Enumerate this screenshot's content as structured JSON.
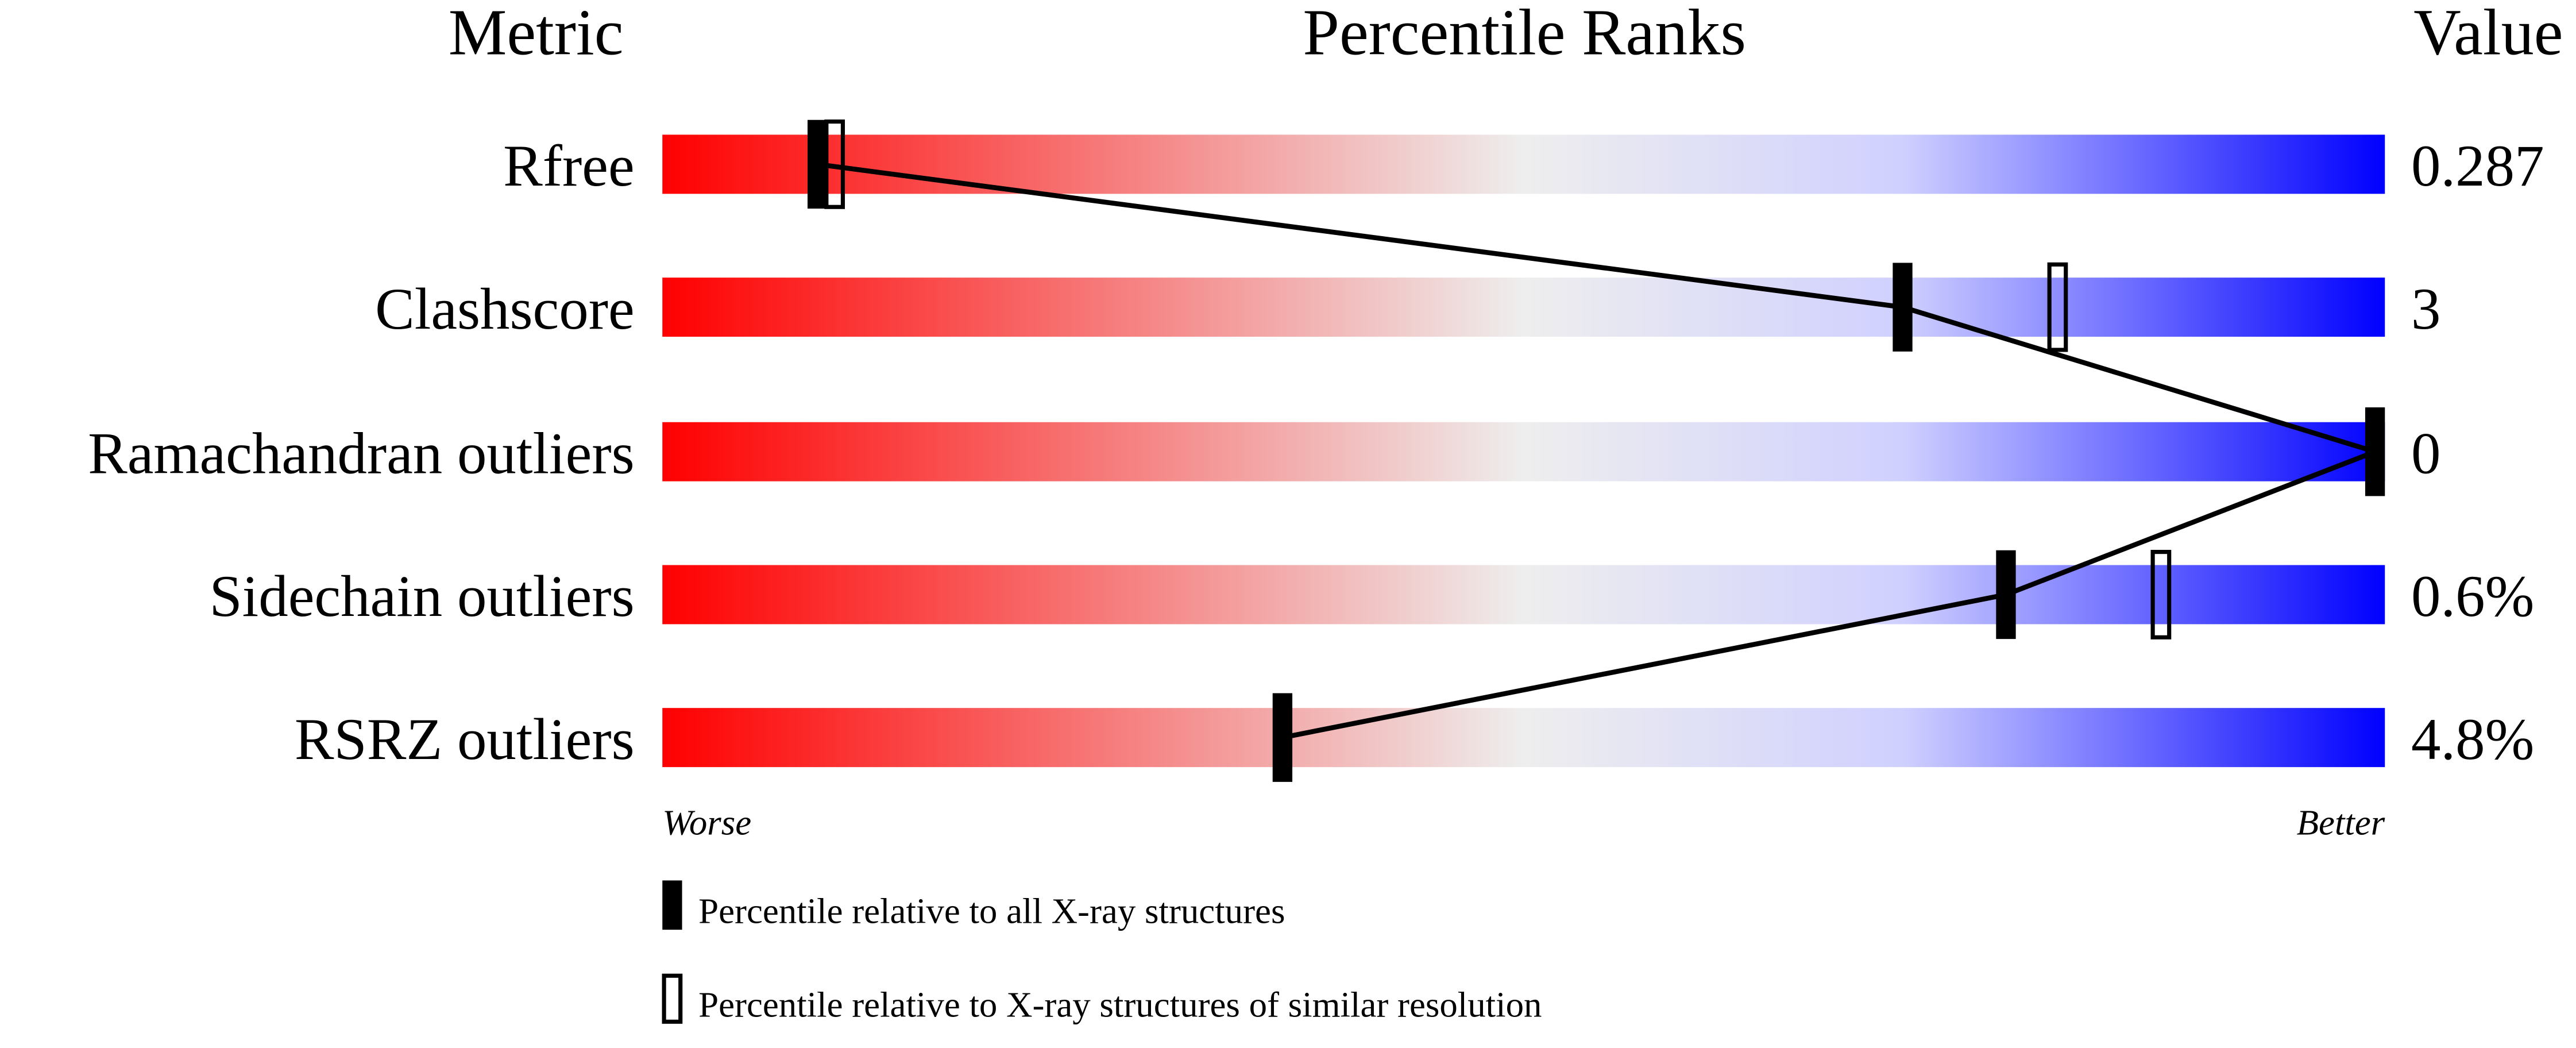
{
  "chart_data": {
    "type": "percentile-ranks",
    "headers": {
      "metric": "Metric",
      "ranks": "Percentile Ranks",
      "value": "Value"
    },
    "xlim": [
      0,
      100
    ],
    "rows": [
      {
        "metric": "Rfree",
        "value": "0.287",
        "percentile_all": 9,
        "percentile_similar": 10
      },
      {
        "metric": "Clashscore",
        "value": "3",
        "percentile_all": 72,
        "percentile_similar": 81
      },
      {
        "metric": "Ramachandran outliers",
        "value": "0",
        "percentile_all": 100,
        "percentile_similar": 100
      },
      {
        "metric": "Sidechain outliers",
        "value": "0.6%",
        "percentile_all": 78,
        "percentile_similar": 87
      },
      {
        "metric": "RSRZ outliers",
        "value": "4.8%",
        "percentile_all": 36,
        "percentile_similar": null
      }
    ],
    "axis_labels": {
      "left": "Worse",
      "right": "Better"
    },
    "legend": [
      {
        "marker": "filled",
        "label": "Percentile relative to all X-ray structures"
      },
      {
        "marker": "hollow",
        "label": "Percentile relative to X-ray structures of similar resolution"
      }
    ],
    "colors": {
      "worse": "#ff0000",
      "middle": "#eeeeee",
      "light_blue": "#d0d0ff",
      "better": "#0000ff",
      "marker": "#000000"
    }
  }
}
